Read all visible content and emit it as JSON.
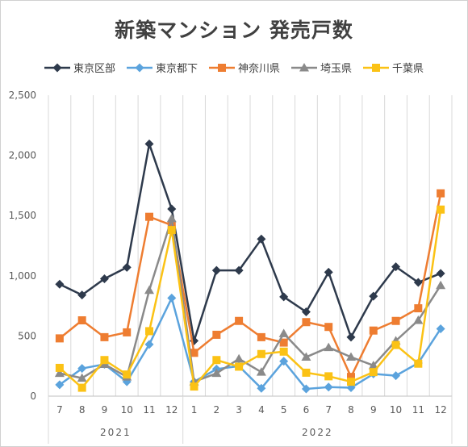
{
  "chart_data": {
    "type": "line",
    "title": "新築マンション 発売戸数",
    "xlabel": "",
    "ylabel": "",
    "ylim": [
      0,
      2500
    ],
    "yticks": [
      "0",
      "500",
      "1,000",
      "1,500",
      "2,000",
      "2,500"
    ],
    "categories": [
      "7",
      "8",
      "9",
      "10",
      "11",
      "12",
      "1",
      "2",
      "3",
      "4",
      "5",
      "6",
      "7",
      "8",
      "9",
      "10",
      "11",
      "12"
    ],
    "year_groups": [
      {
        "label": "2021",
        "start": 0,
        "end": 5
      },
      {
        "label": "2022",
        "start": 6,
        "end": 17
      }
    ],
    "grid": "vertical",
    "legend_position": "top",
    "series": [
      {
        "name": "東京区部",
        "color": "#2e3a4c",
        "marker": "diamond",
        "values": [
          930,
          840,
          975,
          1070,
          2095,
          1555,
          460,
          1045,
          1045,
          1305,
          825,
          700,
          1030,
          490,
          830,
          1075,
          945,
          1020
        ]
      },
      {
        "name": "東京都下",
        "color": "#5ba3dd",
        "marker": "diamond",
        "values": [
          95,
          230,
          265,
          120,
          430,
          815,
          120,
          225,
          250,
          65,
          290,
          60,
          75,
          70,
          185,
          170,
          275,
          560
        ]
      },
      {
        "name": "神奈川県",
        "color": "#ee7d31",
        "marker": "square",
        "values": [
          480,
          630,
          490,
          530,
          1490,
          1420,
          360,
          510,
          625,
          490,
          445,
          615,
          575,
          160,
          545,
          625,
          730,
          1685
        ]
      },
      {
        "name": "埼玉県",
        "color": "#8a8a8a",
        "marker": "triangle",
        "values": [
          190,
          150,
          265,
          160,
          880,
          1475,
          120,
          190,
          310,
          200,
          520,
          325,
          405,
          325,
          255,
          460,
          630,
          920
        ]
      },
      {
        "name": "千葉県",
        "color": "#fbc215",
        "marker": "square",
        "values": [
          235,
          70,
          300,
          180,
          540,
          1380,
          80,
          300,
          245,
          350,
          370,
          195,
          165,
          120,
          200,
          425,
          270,
          1550
        ]
      }
    ]
  }
}
